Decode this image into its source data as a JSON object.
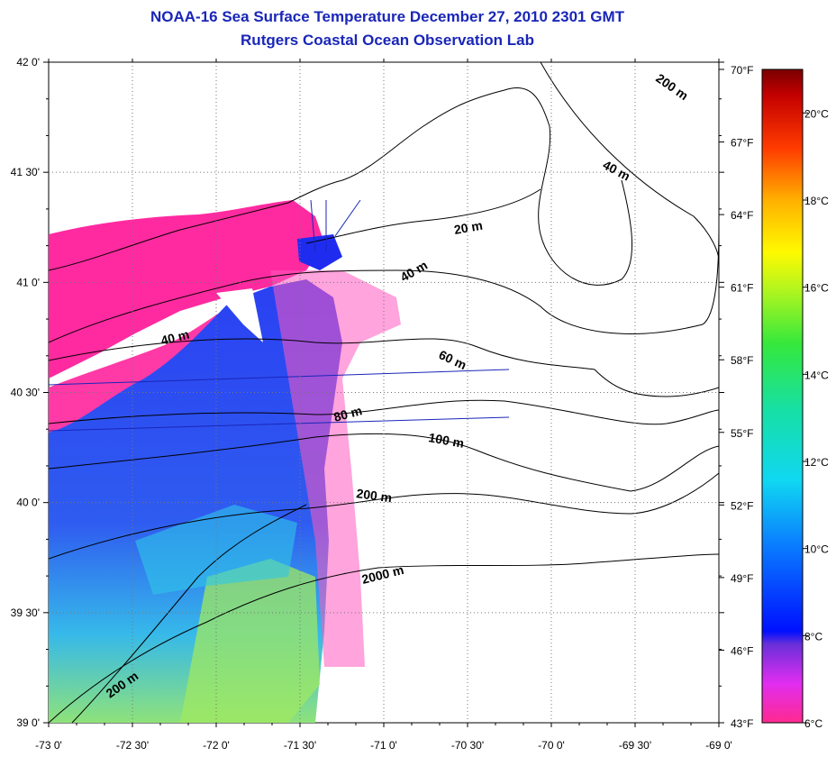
{
  "header": {
    "title": "NOAA-16 Sea Surface Temperature December 27, 2010 2301 GMT",
    "subtitle": "Rutgers Coastal Ocean Observation Lab"
  },
  "map": {
    "lon_range": [
      -73.0,
      -69.0
    ],
    "lat_range": [
      39.0,
      42.0
    ],
    "grid": "dotted",
    "x_ticks": [
      "-73 0'",
      "-72 30'",
      "-72 0'",
      "-71 30'",
      "-71 0'",
      "-70 30'",
      "-70 0'",
      "-69 30'",
      "-69 0'"
    ],
    "y_ticks": [
      "42 0'",
      "41 30'",
      "41 0'",
      "40 30'",
      "40 0'",
      "39 30'",
      "39 0'"
    ],
    "contour_labels": [
      "20 m",
      "40 m",
      "40 m",
      "40 m",
      "60 m",
      "80 m",
      "100 m",
      "200 m",
      "200 m",
      "2000 m",
      "200 m"
    ],
    "colors": {
      "coastal_magenta": "#ff2aa0",
      "cold_blue": "#1f3cf0",
      "mid_cyan": "#2fc6e8",
      "warm_green": "#9fe860",
      "transect": "#1a26b8"
    }
  },
  "colorbar": {
    "fahrenheit_labels": [
      "70°F",
      "67°F",
      "64°F",
      "61°F",
      "58°F",
      "55°F",
      "52°F",
      "49°F",
      "46°F",
      "43°F"
    ],
    "celsius_labels": [
      "20°C",
      "18°C",
      "16°C",
      "14°C",
      "12°C",
      "10°C",
      "8°C",
      "6°C"
    ],
    "range_f": [
      43,
      70
    ],
    "range_c": [
      6,
      21
    ]
  }
}
